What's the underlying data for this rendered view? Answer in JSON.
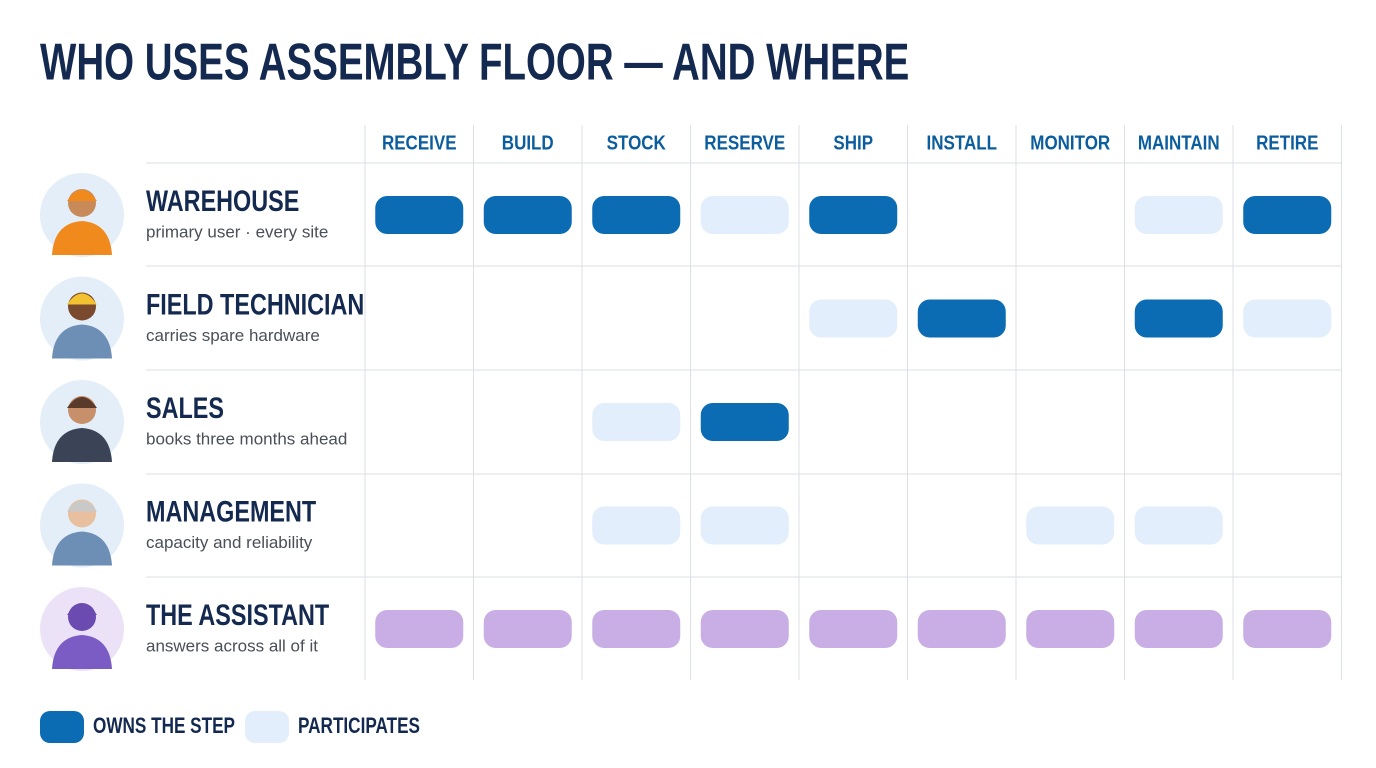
{
  "title": "WHO USES ASSEMBLY FLOOR — AND WHERE",
  "columns": [
    "RECEIVE",
    "BUILD",
    "STOCK",
    "RESERVE",
    "SHIP",
    "INSTALL",
    "MONITOR",
    "MAINTAIN",
    "RETIRE"
  ],
  "styles": {
    "owns": "#0b6cb3",
    "participates": "#e2eefb",
    "assistant": "#c9aee6"
  },
  "rows": [
    {
      "name": "WAREHOUSE",
      "subtitle": "primary user · every site",
      "cells": [
        "owns",
        "owns",
        "owns",
        "participates",
        "owns",
        null,
        null,
        "participates",
        "owns"
      ]
    },
    {
      "name": "FIELD TECHNICIAN",
      "subtitle": "carries spare hardware",
      "cells": [
        null,
        null,
        null,
        null,
        "participates",
        "owns",
        null,
        "owns",
        "participates"
      ]
    },
    {
      "name": "SALES",
      "subtitle": "books three months ahead",
      "cells": [
        null,
        null,
        "participates",
        "owns",
        null,
        null,
        null,
        null,
        null
      ]
    },
    {
      "name": "MANAGEMENT",
      "subtitle": "capacity and reliability",
      "cells": [
        null,
        null,
        "participates",
        "participates",
        null,
        null,
        "participates",
        "participates",
        null
      ]
    },
    {
      "name": "THE ASSISTANT",
      "subtitle": "answers across all of it",
      "cells": [
        "assistant",
        "assistant",
        "assistant",
        "assistant",
        "assistant",
        "assistant",
        "assistant",
        "assistant",
        "assistant"
      ]
    }
  ],
  "legend": [
    {
      "style": "owns",
      "label": "OWNS THE STEP"
    },
    {
      "style": "participates",
      "label": "PARTICIPATES"
    }
  ]
}
